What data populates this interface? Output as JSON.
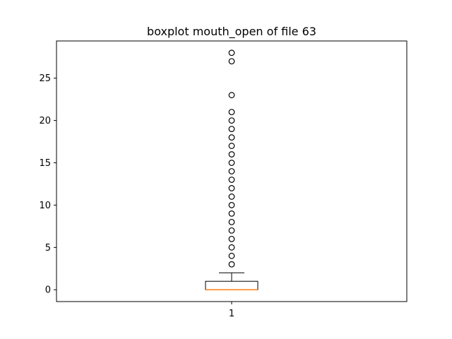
{
  "chart_data": {
    "type": "boxplot",
    "title": "boxplot mouth_open of file 63",
    "xlabel": "",
    "ylabel": "",
    "ylim": [
      -1.4,
      29.4
    ],
    "yticks": [
      0,
      5,
      10,
      15,
      20,
      25
    ],
    "grid": false,
    "legend": "none",
    "categories": [
      "1"
    ],
    "boxes": [
      {
        "category": "1",
        "whisker_low": 0,
        "q1": 0,
        "median": 0,
        "q3": 1,
        "whisker_high": 2,
        "outliers": [
          3,
          4,
          5,
          6,
          7,
          8,
          9,
          10,
          11,
          12,
          13,
          14,
          15,
          16,
          17,
          18,
          19,
          20,
          21,
          23,
          27,
          28
        ]
      }
    ],
    "colors": {
      "box": "#000000",
      "median": "#ff7f0e",
      "outlier_edge": "#000000"
    }
  }
}
